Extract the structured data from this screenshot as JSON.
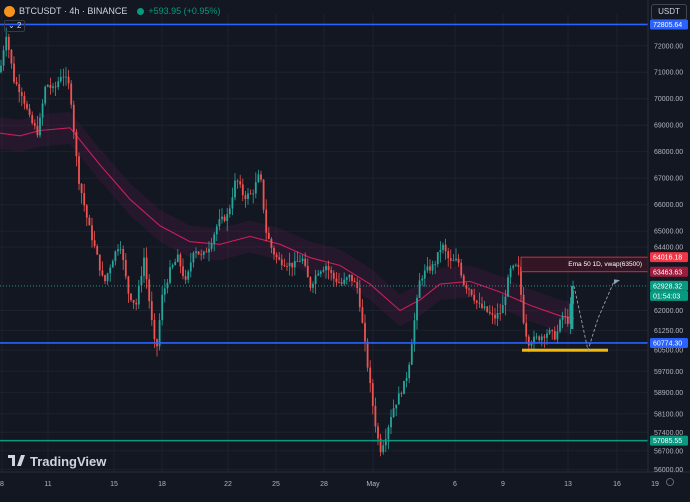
{
  "header": {
    "symbol": "BTCUSDT · 4h · BINANCE",
    "change": "+593.95 (+0.95%)",
    "indicator_count": "2"
  },
  "currency_button": "USDT",
  "logo_text": "TradingView",
  "annotation": "Ema 50 1D, vwap(63500)",
  "colors": {
    "background": "#131722",
    "up": "#26a69a",
    "down": "#ef5350",
    "ema": "#e91e63",
    "level": "#2962ff",
    "support": "#089981",
    "zone": "#f0b90b"
  },
  "chart_data": {
    "type": "candlestick",
    "y_axis_ticks": [
      "72000.00",
      "71000.00",
      "70000.00",
      "69000.00",
      "68000.00",
      "67000.00",
      "66000.00",
      "65000.00",
      "64400.00",
      "62000.00",
      "61250.00",
      "60500.00",
      "59700.00",
      "58900.00",
      "58100.00",
      "57400.00",
      "56700.00",
      "56000.00"
    ],
    "x_axis_ticks": [
      "8",
      "11",
      "15",
      "18",
      "22",
      "25",
      "28",
      "May",
      "6",
      "9",
      "13",
      "16",
      "19"
    ],
    "ylim": [
      56000,
      72800
    ],
    "price_labels": [
      {
        "text": "72805.64",
        "value": 72805.64,
        "kind": "level"
      },
      {
        "text": "64016.18",
        "value": 64016.18,
        "kind": "alert"
      },
      {
        "text": "63463.63",
        "value": 63463.63,
        "kind": "alert"
      },
      {
        "text": "62928.32",
        "value": 62928.32,
        "kind": "current"
      },
      {
        "text": "01:54:03",
        "value": null,
        "kind": "timer"
      },
      {
        "text": "60774.30",
        "value": 60774.3,
        "kind": "level"
      },
      {
        "text": "57085.55",
        "value": 57085.55,
        "kind": "support"
      }
    ],
    "horizontal_lines": [
      {
        "value": 72805.64,
        "color": "#2962ff"
      },
      {
        "value": 60774.3,
        "color": "#2962ff"
      },
      {
        "value": 57085.55,
        "color": "#089981"
      }
    ],
    "price_path": [
      [
        0,
        71000
      ],
      [
        6,
        72500
      ],
      [
        14,
        70700
      ],
      [
        22,
        70200
      ],
      [
        30,
        69200
      ],
      [
        38,
        68700
      ],
      [
        46,
        70600
      ],
      [
        54,
        70300
      ],
      [
        62,
        71000
      ],
      [
        70,
        70400
      ],
      [
        78,
        67100
      ],
      [
        88,
        65300
      ],
      [
        96,
        64200
      ],
      [
        104,
        63000
      ],
      [
        112,
        63900
      ],
      [
        120,
        64600
      ],
      [
        128,
        62700
      ],
      [
        136,
        62200
      ],
      [
        144,
        64000
      ],
      [
        152,
        61500
      ],
      [
        156,
        60300
      ],
      [
        162,
        62500
      ],
      [
        170,
        63500
      ],
      [
        178,
        64000
      ],
      [
        186,
        63000
      ],
      [
        194,
        64400
      ],
      [
        202,
        64000
      ],
      [
        210,
        64500
      ],
      [
        218,
        65300
      ],
      [
        228,
        65600
      ],
      [
        236,
        67000
      ],
      [
        244,
        66300
      ],
      [
        252,
        66400
      ],
      [
        260,
        67200
      ],
      [
        266,
        65000
      ],
      [
        272,
        64300
      ],
      [
        278,
        63900
      ],
      [
        286,
        63800
      ],
      [
        294,
        63700
      ],
      [
        302,
        64000
      ],
      [
        310,
        62900
      ],
      [
        318,
        63500
      ],
      [
        326,
        63700
      ],
      [
        334,
        63200
      ],
      [
        342,
        63000
      ],
      [
        350,
        63300
      ],
      [
        358,
        62800
      ],
      [
        364,
        61000
      ],
      [
        370,
        59200
      ],
      [
        375,
        57800
      ],
      [
        380,
        56700
      ],
      [
        386,
        57300
      ],
      [
        392,
        58200
      ],
      [
        398,
        58700
      ],
      [
        404,
        59200
      ],
      [
        408,
        59700
      ],
      [
        414,
        61500
      ],
      [
        420,
        63200
      ],
      [
        426,
        63500
      ],
      [
        434,
        63700
      ],
      [
        442,
        64500
      ],
      [
        450,
        63800
      ],
      [
        458,
        63900
      ],
      [
        464,
        63000
      ],
      [
        470,
        62800
      ],
      [
        478,
        62200
      ],
      [
        486,
        62000
      ],
      [
        494,
        61700
      ],
      [
        502,
        62000
      ],
      [
        510,
        63500
      ],
      [
        518,
        63700
      ],
      [
        524,
        61500
      ],
      [
        528,
        60800
      ],
      [
        534,
        60900
      ],
      [
        540,
        61000
      ],
      [
        548,
        61200
      ],
      [
        556,
        61000
      ],
      [
        562,
        61800
      ],
      [
        568,
        61600
      ],
      [
        574,
        62928
      ]
    ],
    "ema_path": [
      [
        0,
        68700
      ],
      [
        20,
        68600
      ],
      [
        40,
        68800
      ],
      [
        70,
        68900
      ],
      [
        100,
        67500
      ],
      [
        130,
        66200
      ],
      [
        160,
        65200
      ],
      [
        190,
        64600
      ],
      [
        220,
        64500
      ],
      [
        250,
        64800
      ],
      [
        280,
        64500
      ],
      [
        310,
        64000
      ],
      [
        340,
        63700
      ],
      [
        370,
        63000
      ],
      [
        400,
        62000
      ],
      [
        420,
        62400
      ],
      [
        440,
        63000
      ],
      [
        470,
        63100
      ],
      [
        500,
        62700
      ],
      [
        530,
        62200
      ],
      [
        560,
        61800
      ],
      [
        574,
        61700
      ]
    ],
    "annotation_zone": {
      "x_from": 521,
      "x_to": 648,
      "y_from": 63463.63,
      "y_to": 64016.18
    },
    "target_zone": {
      "x_from": 522,
      "x_to": 608,
      "value": 60500
    },
    "projection_path": [
      [
        574,
        62928
      ],
      [
        588,
        60500
      ],
      [
        598,
        61700
      ],
      [
        614,
        63100
      ]
    ]
  }
}
